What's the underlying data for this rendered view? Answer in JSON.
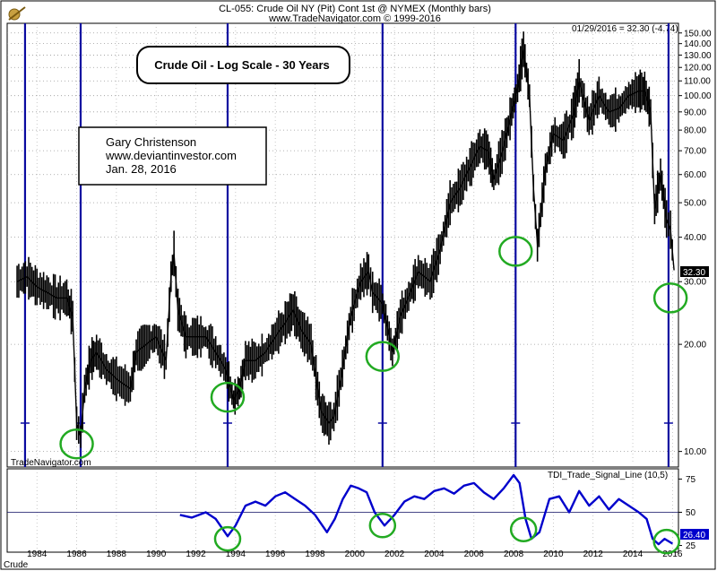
{
  "header": {
    "line1": "CL-055:  Crude Oil NY (Pit) Cont 1st @ NYMEX  (Monthly bars)",
    "line2": "www.TradeNavigator.com © 1999-2016",
    "quote": "01/29/2016 = 32.30 (-4.74)"
  },
  "annotations": {
    "title": "Crude Oil - Log Scale - 30 Years",
    "author": "Gary Christenson",
    "website": "www.deviantinvestor.com",
    "date": "Jan. 28, 2016",
    "watermark": "TradeNavigator.com",
    "footer": "Crude"
  },
  "price_tag": "32.30",
  "tdi_tag": "26.40",
  "indicator_label": "TDI_Trade_Signal_Line (10,5)",
  "colors": {
    "price": "#000000",
    "cycle_lines": "#0a0aa0",
    "circles": "#22aa22",
    "indicator": "#0000cc"
  },
  "chart_data": [
    {
      "type": "line",
      "scale": "log",
      "title": "Crude Oil - Log Scale - 30 Years",
      "xlim": [
        1982.5,
        2016.3
      ],
      "ylim": [
        9.2,
        156
      ],
      "yticks": [
        10,
        20,
        30,
        40,
        50,
        60,
        70,
        80,
        90,
        100,
        110,
        120,
        130,
        140,
        150
      ],
      "ytick_labels": [
        "10.00",
        "20.00",
        "30.00",
        "40.00",
        "50.00",
        "60.00",
        "70.00",
        "80.00",
        "90.00",
        "100.00",
        "110.00",
        "120.00",
        "130.00",
        "140.00",
        "150.00"
      ],
      "series": [
        {
          "x": [
            1983.0,
            1983.5,
            1984.0,
            1984.5,
            1985.0,
            1985.5,
            1985.8,
            1986.0,
            1986.2,
            1986.4,
            1986.7,
            1987.0,
            1987.5,
            1988.0,
            1988.7,
            1989.0,
            1989.5,
            1990.0,
            1990.5,
            1990.75,
            1990.9,
            1991.1,
            1991.5,
            1992.0,
            1992.5,
            1993.0,
            1993.5,
            1993.9,
            1994.2,
            1994.5,
            1995.0,
            1995.5,
            1996.0,
            1996.5,
            1996.9,
            1997.3,
            1997.8,
            1998.3,
            1998.7,
            1998.95,
            1999.3,
            1999.8,
            2000.3,
            2000.7,
            2000.9,
            2001.4,
            2001.9,
            2002.3,
            2002.8,
            2003.2,
            2003.8,
            2004.3,
            2004.8,
            2005.3,
            2005.8,
            2006.3,
            2006.7,
            2007.0,
            2007.5,
            2007.9,
            2008.2,
            2008.5,
            2008.8,
            2009.0,
            2009.2,
            2009.6,
            2010.0,
            2010.5,
            2011.0,
            2011.3,
            2011.8,
            2012.3,
            2012.8,
            2013.3,
            2013.8,
            2014.3,
            2014.6,
            2014.9,
            2015.1,
            2015.4,
            2015.7,
            2015.9,
            2016.08
          ],
          "y": [
            30,
            31,
            29,
            28,
            27,
            27,
            24,
            12,
            11,
            15,
            18,
            19,
            17,
            16,
            15,
            19,
            20,
            21,
            18,
            31,
            36,
            25,
            21,
            21,
            21,
            19,
            17,
            14,
            15,
            18,
            18,
            19,
            21,
            23,
            25,
            22,
            20,
            13,
            12,
            12.5,
            16,
            24,
            30,
            32,
            28,
            26,
            19,
            24,
            28,
            32,
            30,
            37,
            50,
            55,
            63,
            72,
            70,
            58,
            72,
            90,
            105,
            135,
            100,
            55,
            38,
            62,
            78,
            75,
            88,
            110,
            85,
            100,
            90,
            92,
            100,
            103,
            103,
            90,
            48,
            60,
            45,
            42,
            32.3
          ],
          "style": "monthly bars"
        }
      ],
      "cycle_lines_x": [
        1983.4,
        1986.2,
        1993.6,
        2001.4,
        2008.1,
        2015.8
      ],
      "low_markers": [
        {
          "x": 1986.0,
          "y": 10.5
        },
        {
          "x": 1993.6,
          "y": 14.2
        },
        {
          "x": 2001.4,
          "y": 18.5
        },
        {
          "x": 2008.1,
          "y": 36.5
        },
        {
          "x": 2015.9,
          "y": 27
        }
      ]
    },
    {
      "type": "line",
      "name": "TDI_Trade_Signal_Line (10,5)",
      "xlim": [
        1982.5,
        2016.3
      ],
      "ylim": [
        22,
        80
      ],
      "yticks": [
        25,
        50,
        75
      ],
      "reference_line": 50,
      "x": [
        1991.2,
        1991.8,
        1992.5,
        1993.0,
        1993.6,
        1994.0,
        1994.5,
        1995.0,
        1995.5,
        1996.0,
        1996.5,
        1997.0,
        1997.5,
        1998.0,
        1998.6,
        1999.0,
        1999.4,
        1999.8,
        2000.2,
        2000.6,
        2001.0,
        2001.5,
        2002.0,
        2002.5,
        2003.0,
        2003.5,
        2004.0,
        2004.5,
        2005.0,
        2005.5,
        2006.0,
        2006.5,
        2007.0,
        2007.5,
        2008.0,
        2008.3,
        2008.6,
        2008.9,
        2009.3,
        2009.8,
        2010.3,
        2010.8,
        2011.3,
        2011.8,
        2012.3,
        2012.8,
        2013.3,
        2013.8,
        2014.3,
        2014.7,
        2015.0,
        2015.3,
        2015.6,
        2016.0
      ],
      "y": [
        48,
        46,
        50,
        45,
        32,
        40,
        55,
        58,
        55,
        62,
        65,
        60,
        55,
        48,
        35,
        45,
        60,
        70,
        68,
        65,
        50,
        40,
        48,
        58,
        62,
        60,
        66,
        68,
        64,
        70,
        72,
        65,
        60,
        68,
        78,
        72,
        45,
        30,
        35,
        60,
        62,
        50,
        66,
        55,
        62,
        52,
        60,
        55,
        50,
        45,
        30,
        26,
        30,
        26.4
      ],
      "xticks": [
        1984,
        1986,
        1988,
        1990,
        1992,
        1994,
        1996,
        1998,
        2000,
        2002,
        2004,
        2006,
        2008,
        2010,
        2012,
        2014,
        2016
      ],
      "low_markers": [
        {
          "x": 1993.6,
          "y": 30
        },
        {
          "x": 2001.4,
          "y": 40
        },
        {
          "x": 2008.5,
          "y": 37
        },
        {
          "x": 2015.7,
          "y": 28
        }
      ]
    }
  ]
}
